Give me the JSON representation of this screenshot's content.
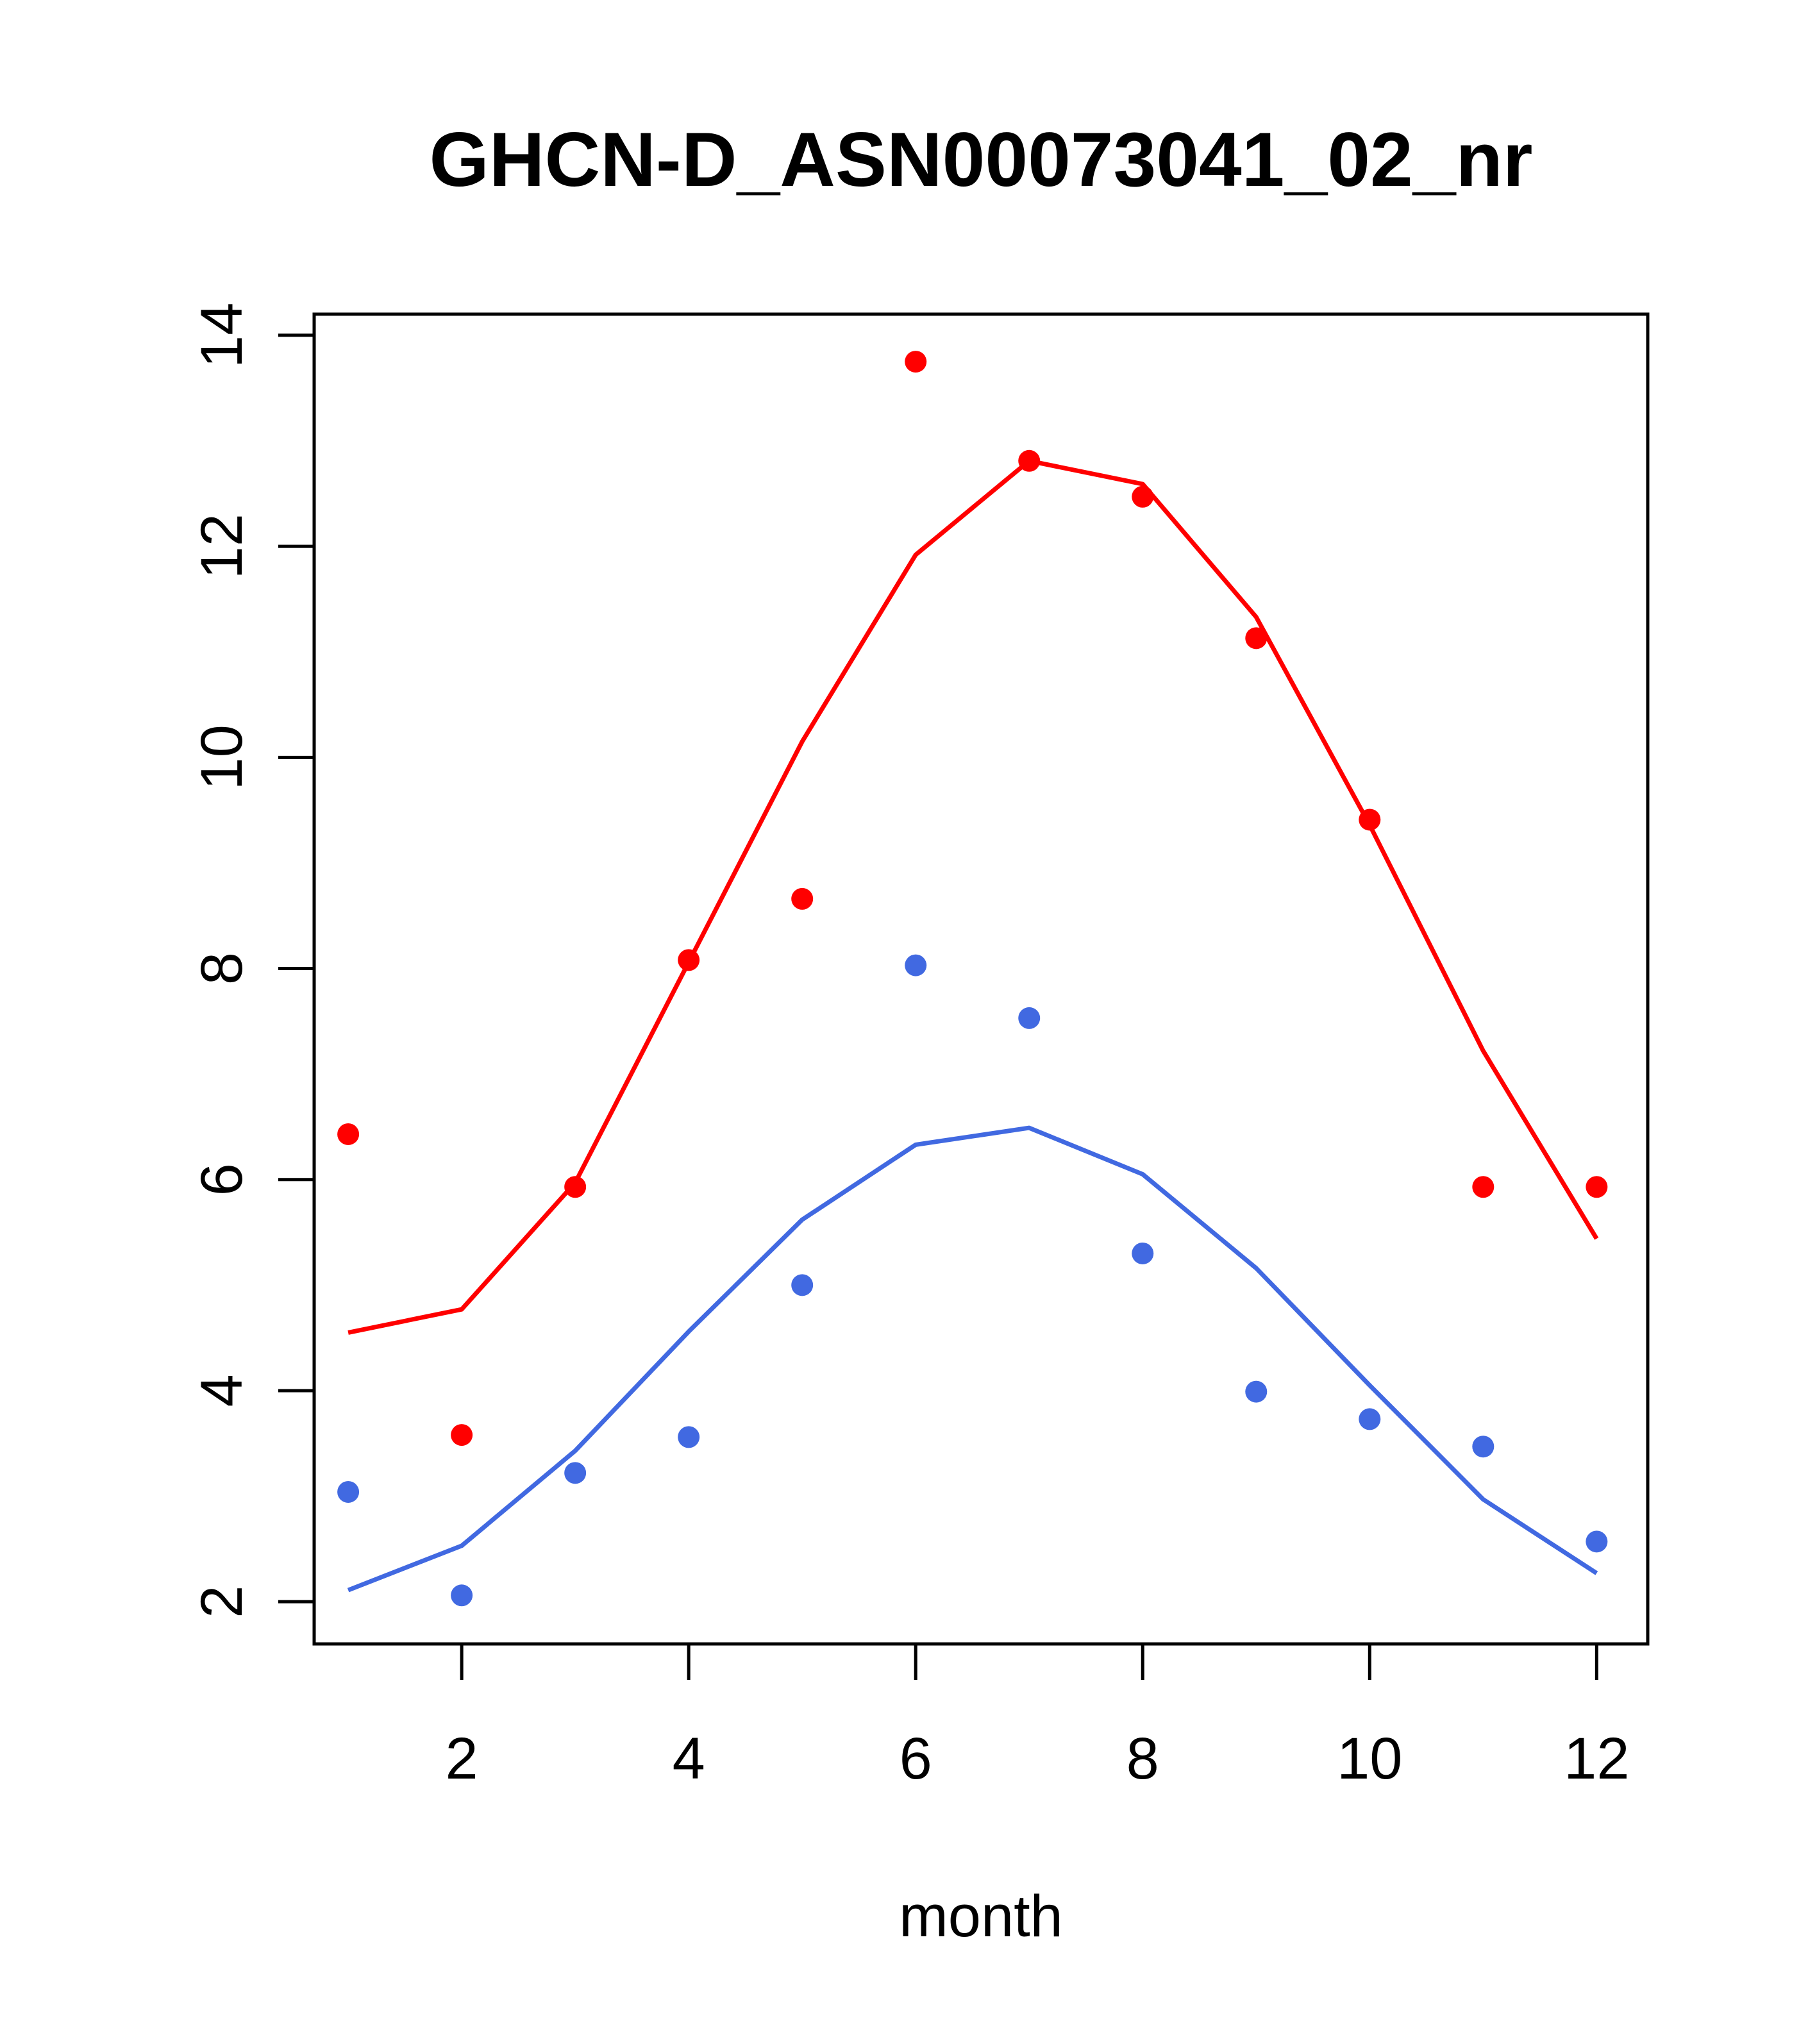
{
  "chart_data": {
    "type": "line",
    "title": "GHCN-D_ASN00073041_02_nr",
    "xlabel": "month",
    "ylabel": "",
    "xlim": [
      0.7,
      12.45
    ],
    "ylim": [
      1.6,
      14.2
    ],
    "x_ticks": [
      2,
      4,
      6,
      8,
      10,
      12
    ],
    "y_ticks": [
      2,
      4,
      6,
      8,
      10,
      12,
      14
    ],
    "grid": false,
    "legend": "none",
    "x": [
      1,
      2,
      3,
      4,
      5,
      6,
      7,
      8,
      9,
      10,
      11,
      12
    ],
    "series": [
      {
        "color": "#ff0000",
        "points": [
          6.43,
          3.58,
          5.93,
          8.08,
          8.66,
          13.75,
          12.81,
          12.47,
          11.13,
          9.41,
          5.93,
          5.93
        ],
        "line": [
          4.55,
          4.77,
          5.97,
          8.06,
          10.15,
          11.92,
          12.81,
          12.59,
          11.33,
          9.36,
          7.22,
          5.44
        ]
      },
      {
        "color": "#4169e1",
        "points": [
          3.04,
          2.06,
          3.22,
          3.56,
          5.0,
          8.03,
          7.53,
          5.3,
          3.99,
          3.73,
          3.47,
          2.57
        ],
        "line": [
          2.11,
          2.53,
          3.43,
          4.56,
          5.62,
          6.33,
          6.49,
          6.05,
          5.16,
          4.05,
          2.97,
          2.27
        ]
      }
    ]
  }
}
